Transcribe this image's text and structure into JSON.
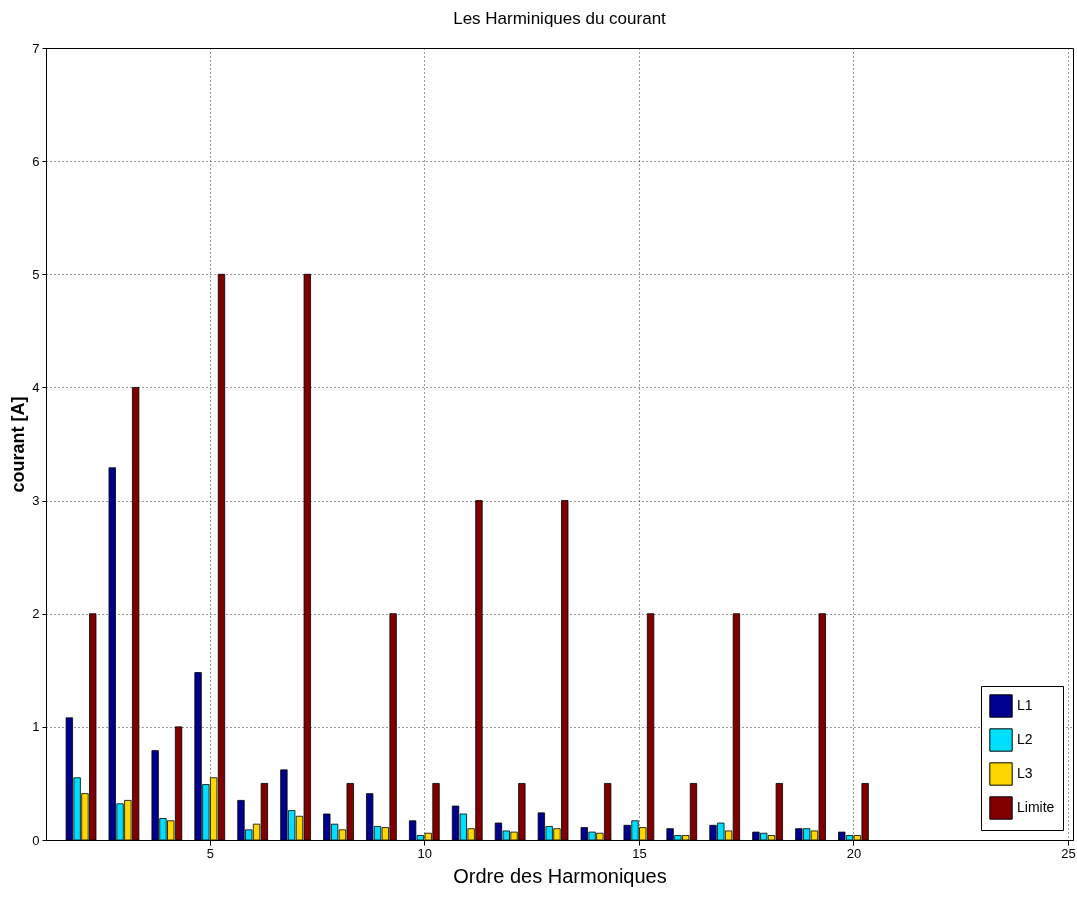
{
  "chart_data": {
    "type": "bar",
    "title": "Les Harminiques du courant",
    "xlabel": "Ordre des Harmoniques",
    "ylabel": "courant [A]",
    "x": [
      2,
      3,
      4,
      5,
      6,
      7,
      8,
      9,
      10,
      11,
      12,
      13,
      14,
      15,
      16,
      17,
      18,
      19,
      20
    ],
    "series": [
      {
        "name": "L1",
        "color": "#00008f",
        "values": [
          1.08,
          3.29,
          0.79,
          1.48,
          0.35,
          0.62,
          0.23,
          0.41,
          0.17,
          0.3,
          0.15,
          0.24,
          0.11,
          0.13,
          0.1,
          0.13,
          0.07,
          0.1,
          0.07
        ]
      },
      {
        "name": "L2",
        "color": "#00dfff",
        "values": [
          0.55,
          0.32,
          0.19,
          0.49,
          0.09,
          0.26,
          0.14,
          0.12,
          0.04,
          0.23,
          0.08,
          0.12,
          0.07,
          0.17,
          0.04,
          0.15,
          0.06,
          0.1,
          0.04
        ]
      },
      {
        "name": "L3",
        "color": "#ffd700",
        "values": [
          0.41,
          0.35,
          0.17,
          0.55,
          0.14,
          0.21,
          0.09,
          0.11,
          0.06,
          0.1,
          0.07,
          0.1,
          0.06,
          0.11,
          0.04,
          0.08,
          0.04,
          0.08,
          0.04
        ]
      },
      {
        "name": "Limite",
        "color": "#800000",
        "values": [
          2,
          4,
          1,
          5,
          0.5,
          5,
          0.5,
          2,
          0.5,
          3,
          0.5,
          3,
          0.5,
          2,
          0.5,
          2,
          0.5,
          2,
          0.5
        ]
      }
    ],
    "xlim": [
      1.3,
      25
    ],
    "xticks": [
      5,
      10,
      15,
      20,
      25
    ],
    "ylim": [
      0,
      7
    ],
    "yticks": [
      0,
      1,
      2,
      3,
      4,
      5,
      6,
      7
    ],
    "grid": true,
    "legend": "bottom right",
    "line_style": "dotted"
  }
}
